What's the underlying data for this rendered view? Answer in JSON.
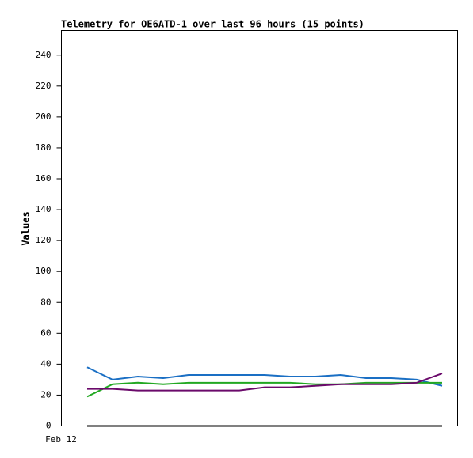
{
  "chart_data": {
    "type": "line",
    "title": "Telemetry for OE6ATD-1 over last 96 hours (15 points)",
    "y_label": "Values",
    "x_start_label": "Feb 12",
    "categories": [
      null,
      null,
      null,
      null,
      null,
      null,
      null,
      null,
      null,
      null,
      null,
      null,
      null,
      null,
      null
    ],
    "series": [
      {
        "color": "#1a6fc4",
        "values": [
          38,
          30,
          32,
          31,
          33,
          33,
          33,
          33,
          32,
          32,
          33,
          31,
          31,
          30,
          26
        ]
      },
      {
        "color": "#22a822",
        "values": [
          19,
          27,
          28,
          27,
          28,
          28,
          28,
          28,
          28,
          27,
          27,
          28,
          28,
          28,
          28
        ]
      },
      {
        "color": "#6b0a6b",
        "values": [
          24,
          24,
          23,
          23,
          23,
          23,
          23,
          25,
          25,
          26,
          27,
          27,
          27,
          28,
          34
        ]
      },
      {
        "color": "#000000",
        "values": [
          0,
          0,
          0,
          0,
          0,
          0,
          0,
          0,
          0,
          0,
          0,
          0,
          0,
          0,
          0
        ]
      }
    ],
    "ylim": [
      0,
      256
    ],
    "yticks": [
      0,
      20,
      40,
      60,
      80,
      100,
      120,
      140,
      160,
      180,
      200,
      220,
      240
    ],
    "grid": false
  }
}
